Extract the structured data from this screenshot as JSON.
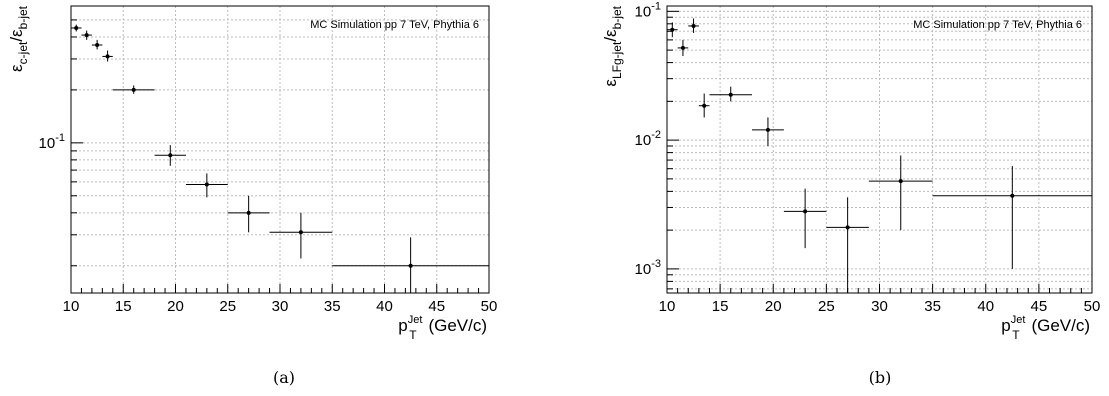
{
  "chart_data": [
    {
      "type": "scatter",
      "caption": "(a)",
      "annotation": "MC Simulation pp 7 TeV, Phythia 6",
      "ylabel": {
        "base": "ε",
        "num_sub": "c-jet",
        "den": "ε",
        "den_sub": "b-jet"
      },
      "xlabel": {
        "base": "p",
        "sub": "T",
        "sup": "Jet",
        "unit": "(GeV/c)"
      },
      "xlim": [
        10,
        50
      ],
      "ylim": [
        0.014,
        0.6
      ],
      "yscale": "log",
      "grid": true,
      "x_ticks": [
        "10",
        "15",
        "20",
        "25",
        "30",
        "35",
        "40",
        "45",
        "50"
      ],
      "y_ticks": [
        {
          "value": 0.1,
          "base": "10",
          "exp": "-1"
        }
      ],
      "points": [
        {
          "x": 10.5,
          "xlow": 10,
          "xhigh": 11,
          "y": 0.45,
          "ylow": 0.43,
          "yhigh": 0.47
        },
        {
          "x": 11.5,
          "xlow": 11,
          "xhigh": 12,
          "y": 0.41,
          "ylow": 0.385,
          "yhigh": 0.435
        },
        {
          "x": 12.5,
          "xlow": 12,
          "xhigh": 13,
          "y": 0.36,
          "ylow": 0.34,
          "yhigh": 0.385
        },
        {
          "x": 13.5,
          "xlow": 13,
          "xhigh": 14,
          "y": 0.31,
          "ylow": 0.29,
          "yhigh": 0.335
        },
        {
          "x": 16,
          "xlow": 14,
          "xhigh": 18,
          "y": 0.2,
          "ylow": 0.19,
          "yhigh": 0.212
        },
        {
          "x": 19.5,
          "xlow": 18,
          "xhigh": 21,
          "y": 0.085,
          "ylow": 0.074,
          "yhigh": 0.097
        },
        {
          "x": 23,
          "xlow": 21,
          "xhigh": 25,
          "y": 0.058,
          "ylow": 0.049,
          "yhigh": 0.067
        },
        {
          "x": 27,
          "xlow": 25,
          "xhigh": 29,
          "y": 0.04,
          "ylow": 0.031,
          "yhigh": 0.05
        },
        {
          "x": 32,
          "xlow": 29,
          "xhigh": 35,
          "y": 0.031,
          "ylow": 0.022,
          "yhigh": 0.04
        },
        {
          "x": 42.5,
          "xlow": 35,
          "xhigh": 50,
          "y": 0.02,
          "ylow": 0.0125,
          "yhigh": 0.029
        }
      ]
    },
    {
      "type": "scatter",
      "caption": "(b)",
      "annotation": "MC Simulation pp 7 TeV, Phythia 6",
      "ylabel": {
        "base": "ε",
        "num_sub": "LFg-jet",
        "den": "ε",
        "den_sub": "b-jet"
      },
      "xlabel": {
        "base": "p",
        "sub": "T",
        "sup": "Jet",
        "unit": "(GeV/c)"
      },
      "xlim": [
        10,
        50
      ],
      "ylim": [
        0.00065,
        0.11
      ],
      "yscale": "log",
      "grid": true,
      "x_ticks": [
        "10",
        "15",
        "20",
        "25",
        "30",
        "35",
        "40",
        "45",
        "50"
      ],
      "y_ticks": [
        {
          "value": 0.1,
          "base": "10",
          "exp": "-1"
        },
        {
          "value": 0.01,
          "base": "10",
          "exp": "-2"
        },
        {
          "value": 0.001,
          "base": "10",
          "exp": "-3"
        }
      ],
      "points": [
        {
          "x": 10.5,
          "xlow": 10,
          "xhigh": 11,
          "y": 0.072,
          "ylow": 0.063,
          "yhigh": 0.082
        },
        {
          "x": 11.5,
          "xlow": 11,
          "xhigh": 12,
          "y": 0.052,
          "ylow": 0.045,
          "yhigh": 0.06
        },
        {
          "x": 12.5,
          "xlow": 12,
          "xhigh": 13,
          "y": 0.077,
          "ylow": 0.068,
          "yhigh": 0.088
        },
        {
          "x": 13.5,
          "xlow": 13,
          "xhigh": 14,
          "y": 0.0185,
          "ylow": 0.015,
          "yhigh": 0.023
        },
        {
          "x": 16,
          "xlow": 14,
          "xhigh": 18,
          "y": 0.0225,
          "ylow": 0.02,
          "yhigh": 0.026
        },
        {
          "x": 19.5,
          "xlow": 18,
          "xhigh": 21,
          "y": 0.012,
          "ylow": 0.009,
          "yhigh": 0.015
        },
        {
          "x": 23,
          "xlow": 21,
          "xhigh": 25,
          "y": 0.0028,
          "ylow": 0.00145,
          "yhigh": 0.0042
        },
        {
          "x": 27,
          "xlow": 25,
          "xhigh": 29,
          "y": 0.0021,
          "ylow": 0.00065,
          "yhigh": 0.0036
        },
        {
          "x": 32,
          "xlow": 29,
          "xhigh": 35,
          "y": 0.0048,
          "ylow": 0.002,
          "yhigh": 0.0076
        },
        {
          "x": 42.5,
          "xlow": 35,
          "xhigh": 50,
          "y": 0.0037,
          "ylow": 0.001,
          "yhigh": 0.0063
        }
      ]
    }
  ]
}
